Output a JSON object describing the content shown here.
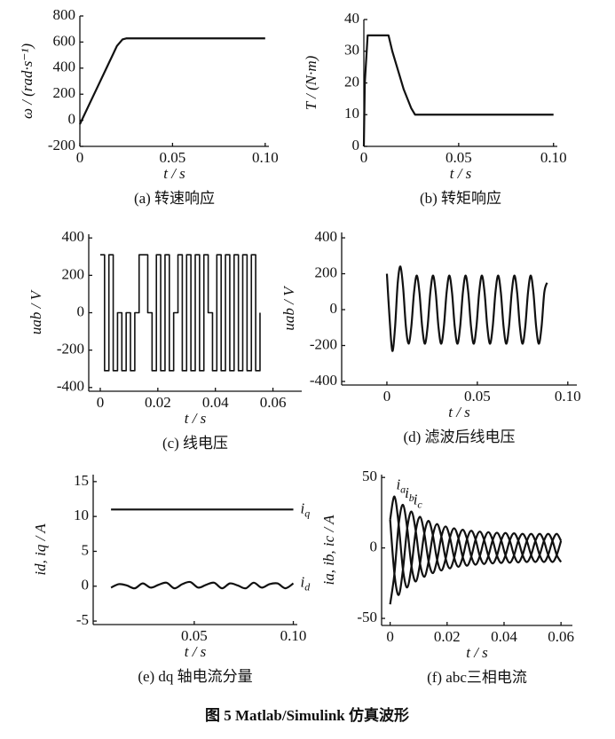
{
  "figure_caption": "图 5 Matlab/Simulink 仿真波形",
  "chart_data": [
    {
      "type": "line",
      "caption": "(a) 转速响应",
      "xlabel": "t / s",
      "ylabel": "ω / (rad·s⁻¹)",
      "xlim": [
        0,
        0.102
      ],
      "ylim": [
        -200,
        800
      ],
      "xticks": [
        0,
        0.05,
        {
          "value": 0.1,
          "label": "0.10"
        }
      ],
      "yticks": [
        -200,
        0,
        200,
        400,
        600,
        800
      ],
      "x": [
        0,
        0.005,
        0.01,
        0.015,
        0.02,
        0.023,
        0.025,
        0.1
      ],
      "series": [
        {
          "color": "#111111",
          "values": [
            -30,
            120,
            270,
            420,
            570,
            620,
            628,
            628
          ]
        }
      ]
    },
    {
      "type": "line",
      "caption": "(b) 转矩响应",
      "xlabel": "t / s",
      "ylabel": "T / (N·m)",
      "xlim": [
        0,
        0.102
      ],
      "ylim": [
        0,
        40
      ],
      "xticks": [
        0,
        0.05,
        {
          "value": 0.1,
          "label": "0.10"
        }
      ],
      "yticks": [
        0,
        10,
        20,
        30,
        40
      ],
      "x": [
        0,
        0.0005,
        0.0015,
        0.002,
        0.013,
        0.015,
        0.017,
        0.019,
        0.021,
        0.023,
        0.025,
        0.027,
        0.1
      ],
      "series": [
        {
          "color": "#111111",
          "values": [
            0,
            20,
            30,
            35,
            35,
            30,
            26,
            22,
            18,
            15,
            12,
            10,
            10
          ]
        }
      ]
    },
    {
      "type": "line",
      "step": true,
      "caption": "(c) 线电压",
      "xlabel": "t / s",
      "ylabel": "uab / V",
      "xlim": [
        -0.004,
        0.07
      ],
      "ylim": [
        -420,
        420
      ],
      "xticks": [
        0,
        0.02,
        0.04,
        0.06
      ],
      "yticks": [
        -400,
        -200,
        0,
        200,
        400
      ],
      "x": [
        0,
        0.0015,
        0.003,
        0.0045,
        0.006,
        0.0075,
        0.009,
        0.0105,
        0.012,
        0.0135,
        0.015,
        0.0165,
        0.018,
        0.0195,
        0.021,
        0.0225,
        0.024,
        0.0255,
        0.027,
        0.0285,
        0.03,
        0.0315,
        0.033,
        0.0345,
        0.036,
        0.0375,
        0.039,
        0.0405,
        0.042,
        0.0435,
        0.045,
        0.0465,
        0.048,
        0.0495,
        0.051,
        0.0525,
        0.054,
        0.0555
      ],
      "series": [
        {
          "color": "#111111",
          "values": [
            310,
            -310,
            310,
            -310,
            0,
            -310,
            0,
            -310,
            0,
            310,
            310,
            0,
            -310,
            310,
            -310,
            310,
            -310,
            0,
            310,
            -310,
            310,
            -310,
            310,
            -310,
            310,
            0,
            -310,
            310,
            -310,
            310,
            -310,
            310,
            -310,
            310,
            -310,
            310,
            -310,
            0
          ]
        }
      ]
    },
    {
      "type": "line",
      "smooth": true,
      "caption": "(d) 滤波后线电压",
      "xlabel": "t / s",
      "ylabel": "uab / V",
      "xlim": [
        -0.025,
        0.105
      ],
      "ylim": [
        -420,
        430
      ],
      "xticks": [
        0,
        0.05,
        {
          "value": 0.1,
          "label": "0.10"
        }
      ],
      "yticks": [
        -400,
        -200,
        0,
        200,
        400
      ],
      "x": [
        0,
        0.0015,
        0.003,
        0.0045,
        0.006,
        0.0075,
        0.009,
        0.0105,
        0.012,
        0.0135,
        0.015,
        0.0165,
        0.018,
        0.0195,
        0.021,
        0.0225,
        0.024,
        0.0255,
        0.027,
        0.0285,
        0.03,
        0.0315,
        0.033,
        0.0345,
        0.036,
        0.0375,
        0.039,
        0.0405,
        0.042,
        0.0435,
        0.045,
        0.0465,
        0.048,
        0.0495,
        0.051,
        0.0525,
        0.054,
        0.0555,
        0.057,
        0.0585,
        0.06,
        0.0615,
        0.063,
        0.0645,
        0.066,
        0.0675,
        0.069,
        0.0705,
        0.072,
        0.0735,
        0.075,
        0.0765,
        0.078,
        0.0795,
        0.081,
        0.0825,
        0.084,
        0.0855,
        0.087,
        0.0885
      ],
      "series": [
        {
          "color": "#111111",
          "values": [
            200,
            -50,
            -230,
            -100,
            150,
            240,
            120,
            -95,
            -190,
            -95,
            95,
            190,
            95,
            -95,
            -190,
            -95,
            95,
            190,
            95,
            -95,
            -190,
            -95,
            95,
            190,
            95,
            -95,
            -190,
            -95,
            95,
            190,
            95,
            -95,
            -190,
            -95,
            95,
            190,
            95,
            -95,
            -190,
            -95,
            95,
            190,
            95,
            -95,
            -190,
            -95,
            95,
            190,
            95,
            -95,
            -190,
            -95,
            95,
            190,
            95,
            -95,
            -190,
            -95,
            95,
            150
          ]
        }
      ]
    },
    {
      "type": "line",
      "smooth": true,
      "caption": "(e) dq 轴电流分量",
      "xlabel": "t / s",
      "ylabel": "id, iq / A",
      "xlim": [
        -0.001,
        0.102
      ],
      "ylim": [
        -5.5,
        16
      ],
      "xticks": [
        0.05,
        {
          "value": 0.1,
          "label": "0.10"
        }
      ],
      "yticks": [
        -5,
        0,
        5,
        10,
        15
      ],
      "x": [
        0.008,
        0.012,
        0.016,
        0.02,
        0.024,
        0.028,
        0.032,
        0.036,
        0.04,
        0.044,
        0.048,
        0.052,
        0.056,
        0.06,
        0.064,
        0.068,
        0.072,
        0.076,
        0.08,
        0.084,
        0.088,
        0.092,
        0.096,
        0.1
      ],
      "series": [
        {
          "name": "iq",
          "color": "#111111",
          "values": [
            11,
            11,
            11,
            11,
            11,
            11,
            11,
            11,
            11,
            11,
            11,
            11,
            11,
            11,
            11,
            11,
            11,
            11,
            11,
            11,
            11,
            11,
            11,
            11
          ]
        },
        {
          "name": "id",
          "color": "#111111",
          "values": [
            -0.2,
            0.3,
            0.1,
            -0.3,
            0.4,
            -0.2,
            0.2,
            0.5,
            -0.3,
            0.3,
            0.6,
            -0.2,
            0.2,
            0.5,
            -0.3,
            0.4,
            0.1,
            -0.3,
            0.5,
            -0.2,
            0.3,
            0.4,
            -0.3,
            0.4
          ]
        }
      ]
    },
    {
      "type": "line",
      "smooth": true,
      "caption": "(f) abc三相电流",
      "xlabel": "t / s",
      "ylabel": "ia, ib, ic / A",
      "xlim": [
        -0.003,
        0.064
      ],
      "ylim": [
        -55,
        52
      ],
      "xticks": [
        0,
        0.02,
        0.04,
        0.06
      ],
      "yticks": [
        -50,
        0,
        50
      ],
      "x": [
        0,
        0.0015,
        0.003,
        0.0045,
        0.006,
        0.0075,
        0.009,
        0.0105,
        0.012,
        0.0135,
        0.015,
        0.0165,
        0.018,
        0.0195,
        0.021,
        0.0225,
        0.024,
        0.0255,
        0.027,
        0.0285,
        0.03,
        0.0315,
        0.033,
        0.0345,
        0.036,
        0.0375,
        0.039,
        0.0405,
        0.042,
        0.0435,
        0.045,
        0.0465,
        0.048,
        0.0495,
        0.051,
        0.0525,
        0.054,
        0.0555,
        0.057,
        0.0585,
        0.06
      ],
      "series": [
        {
          "name": "ia",
          "color": "#111111",
          "values": [
            20,
            36.5,
            16.7,
            -15.3,
            -28,
            -12.9,
            11.9,
            22.1,
            10.3,
            -9.6,
            -17.9,
            -8.5,
            8,
            15.2,
            7.3,
            -7,
            -13.4,
            -6.5,
            6.3,
            12.2,
            6,
            -5.8,
            -11.4,
            -5.6,
            5.5,
            10.8,
            5.4,
            -5.3,
            -10.5,
            -5.2,
            5.2,
            10,
            5,
            -5,
            -10,
            -5,
            5,
            10,
            5,
            -5,
            -10
          ]
        },
        {
          "name": "ib",
          "color": "#111111",
          "values": [
            -40,
            -18.3,
            16.7,
            30.6,
            14,
            -12.9,
            -23.8,
            -11.1,
            10.3,
            19.2,
            9,
            -8.5,
            -16,
            -7.6,
            7.3,
            13.9,
            6.7,
            -6.5,
            -12.6,
            -6.1,
            6,
            11.6,
            5.7,
            -5.6,
            -11,
            -5.4,
            5.4,
            10.6,
            5.3,
            -5.2,
            -10.3,
            -5,
            5,
            10,
            5,
            -5,
            -10,
            -5,
            5,
            10,
            5
          ]
        },
        {
          "name": "ic",
          "color": "#111111",
          "values": [
            20,
            -18.3,
            -33.4,
            -15.3,
            14,
            25.8,
            11.9,
            -11.1,
            -20.5,
            -9.6,
            9,
            16.9,
            8,
            -7.6,
            -14.5,
            -7,
            6.7,
            12.9,
            6.3,
            -6.1,
            -11.9,
            -5.8,
            5.7,
            11.2,
            5.5,
            -5.4,
            -10.7,
            -5.3,
            5.3,
            10.4,
            5.2,
            -5,
            -10,
            -5,
            5,
            10,
            5,
            -5,
            -10,
            -5,
            5
          ]
        }
      ]
    }
  ]
}
